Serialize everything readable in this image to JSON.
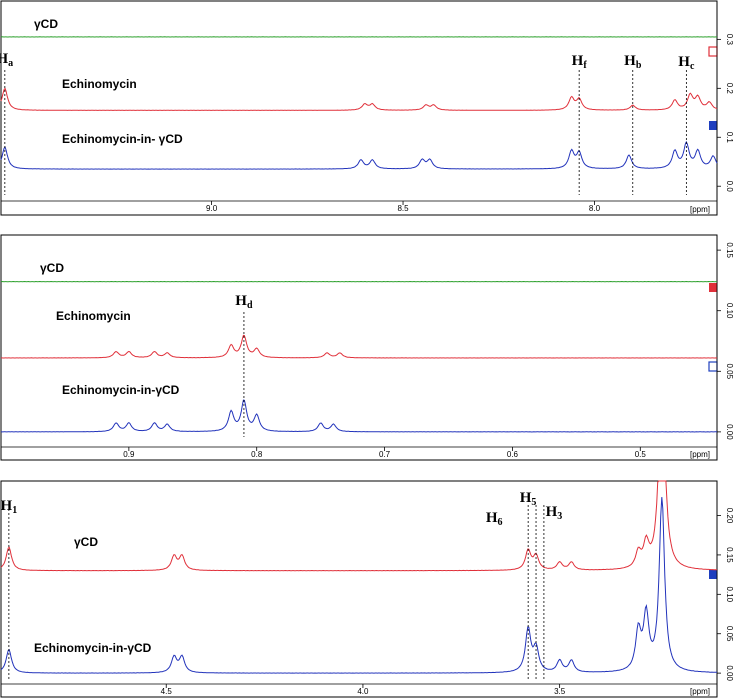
{
  "chart_data": [
    {
      "type": "line",
      "xunit": "[ppm]",
      "xlim": [
        9.55,
        7.68
      ],
      "ylim": [
        -0.02,
        0.36
      ],
      "x_ticks": [
        "9.0",
        "8.5",
        "8.0"
      ],
      "y_ticks": [
        "0.0",
        "0.1",
        "0.2",
        "0.3"
      ],
      "series": [
        {
          "name": "γCD",
          "color": "#2ca02c",
          "baseline": 0.305,
          "peaks": []
        },
        {
          "name": "Echinomycin",
          "color": "#e0303a",
          "baseline": 0.155,
          "peaks": [
            [
              9.54,
              0.045
            ],
            [
              8.6,
              0.012
            ],
            [
              8.58,
              0.012
            ],
            [
              8.44,
              0.01
            ],
            [
              8.42,
              0.01
            ],
            [
              8.06,
              0.025
            ],
            [
              8.04,
              0.022
            ],
            [
              7.9,
              0.01
            ],
            [
              7.79,
              0.02
            ],
            [
              7.75,
              0.03
            ],
            [
              7.73,
              0.025
            ],
            [
              7.7,
              0.015
            ]
          ]
        },
        {
          "name": "Echinomycin-in- γCD",
          "color": "#2233bb",
          "baseline": 0.035,
          "peaks": [
            [
              9.54,
              0.045
            ],
            [
              8.61,
              0.018
            ],
            [
              8.58,
              0.018
            ],
            [
              8.45,
              0.018
            ],
            [
              8.43,
              0.018
            ],
            [
              8.06,
              0.035
            ],
            [
              8.04,
              0.032
            ],
            [
              7.91,
              0.028
            ],
            [
              7.79,
              0.035
            ],
            [
              7.76,
              0.05
            ],
            [
              7.73,
              0.035
            ],
            [
              7.69,
              0.025
            ]
          ]
        }
      ],
      "annotations": [
        {
          "label": "H",
          "sub": "a",
          "x": 9.54
        },
        {
          "label": "H",
          "sub": "f",
          "x": 8.04
        },
        {
          "label": "H",
          "sub": "b",
          "x": 7.9
        },
        {
          "label": "H",
          "sub": "c",
          "x": 7.76
        }
      ]
    },
    {
      "type": "line",
      "xunit": "[ppm]",
      "xlim": [
        1.0,
        0.44
      ],
      "ylim": [
        -0.01,
        0.16
      ],
      "x_ticks": [
        "0.9",
        "0.8",
        "0.7",
        "0.6",
        "0.5"
      ],
      "y_ticks": [
        "0.00",
        "0.05",
        "0.10",
        "0.15"
      ],
      "series": [
        {
          "name": "γCD",
          "color": "#2ca02c",
          "baseline": 0.124,
          "peaks": []
        },
        {
          "name": "Echinomycin",
          "color": "#e0303a",
          "baseline": 0.061,
          "peaks": [
            [
              0.91,
              0.005
            ],
            [
              0.9,
              0.005
            ],
            [
              0.88,
              0.005
            ],
            [
              0.87,
              0.004
            ],
            [
              0.82,
              0.01
            ],
            [
              0.81,
              0.018
            ],
            [
              0.8,
              0.007
            ],
            [
              0.745,
              0.004
            ],
            [
              0.735,
              0.004
            ]
          ]
        },
        {
          "name": "Echinomycin-in-γCD",
          "color": "#2233bb",
          "baseline": 0.0,
          "peaks": [
            [
              0.91,
              0.007
            ],
            [
              0.9,
              0.007
            ],
            [
              0.88,
              0.007
            ],
            [
              0.87,
              0.006
            ],
            [
              0.82,
              0.016
            ],
            [
              0.81,
              0.025
            ],
            [
              0.8,
              0.013
            ],
            [
              0.75,
              0.007
            ],
            [
              0.74,
              0.006
            ]
          ]
        }
      ],
      "annotations": [
        {
          "label": "H",
          "sub": "d",
          "x": 0.81
        }
      ]
    },
    {
      "type": "line",
      "xunit": "[ppm]",
      "xlim": [
        4.92,
        3.1
      ],
      "ylim": [
        -0.01,
        0.24
      ],
      "x_ticks": [
        "4.5",
        "4.0",
        "3.5"
      ],
      "y_ticks": [
        "0.00",
        "0.05",
        "0.10",
        "0.15",
        "0.20"
      ],
      "series": [
        {
          "name": "γCD",
          "color": "#e0303a",
          "baseline": 0.13,
          "peaks": [
            [
              4.9,
              0.03
            ],
            [
              4.48,
              0.018
            ],
            [
              4.46,
              0.018
            ],
            [
              3.58,
              0.025
            ],
            [
              3.56,
              0.018
            ],
            [
              3.5,
              0.01
            ],
            [
              3.47,
              0.01
            ],
            [
              3.3,
              0.02
            ],
            [
              3.28,
              0.03
            ],
            [
              3.24,
              0.3
            ]
          ]
        },
        {
          "name": "Echinomycin-in-γCD",
          "color": "#2233bb",
          "baseline": 0.0,
          "peaks": [
            [
              4.9,
              0.03
            ],
            [
              4.48,
              0.02
            ],
            [
              4.46,
              0.02
            ],
            [
              3.58,
              0.055
            ],
            [
              3.56,
              0.03
            ],
            [
              3.5,
              0.015
            ],
            [
              3.47,
              0.015
            ],
            [
              3.3,
              0.05
            ],
            [
              3.28,
              0.07
            ],
            [
              3.24,
              0.22
            ]
          ]
        }
      ],
      "annotations": [
        {
          "label": "H",
          "sub": "1",
          "x": 4.9
        },
        {
          "label": "H",
          "sub": "6",
          "x": 3.58
        },
        {
          "label": "H",
          "sub": "5",
          "x": 3.56
        },
        {
          "label": "H",
          "sub": "3",
          "x": 3.54
        }
      ]
    }
  ]
}
